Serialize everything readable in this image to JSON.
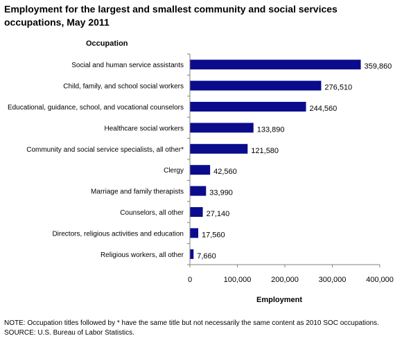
{
  "chart_data": {
    "type": "bar",
    "orientation": "horizontal",
    "title": "Employment for the largest and smallest community and social services occupations, May 2011",
    "ylabel": "Occupation",
    "xlabel": "Employment",
    "categories": [
      "Social and human service assistants",
      "Child, family, and school social workers",
      "Educational, guidance, school, and vocational counselors",
      "Healthcare social workers",
      "Community and social service specialists, all other*",
      "Clergy",
      "Marriage and family therapists",
      "Counselors, all other",
      "Directors, religious activities and education",
      "Religious workers, all other"
    ],
    "values": [
      359860,
      276510,
      244560,
      133890,
      121580,
      42560,
      33990,
      27140,
      17560,
      7660
    ],
    "value_labels": [
      "359,860",
      "276,510",
      "244,560",
      "133,890",
      "121,580",
      "42,560",
      "33,990",
      "27,140",
      "17,560",
      "7,660"
    ],
    "xlim": [
      0,
      400000
    ],
    "xticks": [
      0,
      100000,
      200000,
      300000,
      400000
    ],
    "xtick_labels": [
      "0",
      "100,000",
      "200,000",
      "300,000",
      "400,000"
    ],
    "grid": false,
    "legend": "none",
    "bar_color": "#0b0c8c"
  },
  "footer": {
    "note": "NOTE:  Occupation titles followed by * have the same title but not necessarily the same content as 2010 SOC occupations.",
    "source": "SOURCE: U.S. Bureau of Labor Statistics."
  }
}
